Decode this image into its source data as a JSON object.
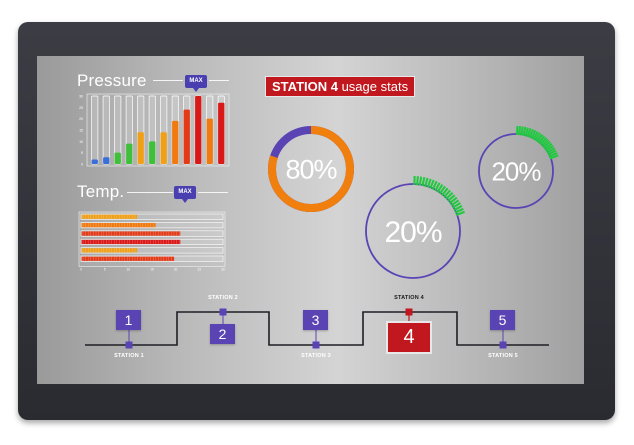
{
  "pressure": {
    "title": "Pressure",
    "max_label": "MAX",
    "y_ticks": [
      "30",
      "25",
      "20",
      "15",
      "10",
      "5",
      "0"
    ],
    "bars": [
      {
        "value": 2,
        "color": "#3a6fd8"
      },
      {
        "value": 3,
        "color": "#3a6fd8"
      },
      {
        "value": 5,
        "color": "#3fbf3a"
      },
      {
        "value": 9,
        "color": "#3fbf3a"
      },
      {
        "value": 14,
        "color": "#f0a018"
      },
      {
        "value": 10,
        "color": "#3fbf3a"
      },
      {
        "value": 14,
        "color": "#f0a018"
      },
      {
        "value": 19,
        "color": "#f07a10"
      },
      {
        "value": 24,
        "color": "#e33a18"
      },
      {
        "value": 30,
        "color": "#d91818"
      },
      {
        "value": 20,
        "color": "#f07a10"
      },
      {
        "value": 27,
        "color": "#d91818"
      }
    ],
    "max_value": 30
  },
  "temp": {
    "title": "Temp.",
    "max_label": "MAX",
    "x_ticks": [
      "0",
      "5",
      "10",
      "15",
      "20",
      "25",
      "30"
    ],
    "bars": [
      {
        "value": 9,
        "color": "#f0a018"
      },
      {
        "value": 12,
        "color": "#f07a10"
      },
      {
        "value": 16,
        "color": "#e33a18"
      },
      {
        "value": 16,
        "color": "#d91818"
      },
      {
        "value": 9,
        "color": "#f0a018"
      },
      {
        "value": 15,
        "color": "#e33a18"
      }
    ],
    "max_value": 23
  },
  "header": {
    "station": "STATION 4",
    "suffix": " usage stats"
  },
  "gauges": [
    {
      "label": "80%",
      "fraction": 0.8,
      "color": "#f07f0e"
    },
    {
      "label": "20%",
      "fraction": 0.2,
      "color": "#22c840"
    },
    {
      "label": "20%",
      "fraction": 0.2,
      "color": "#22c840"
    }
  ],
  "stations": [
    {
      "number": "1",
      "label": "STATION 1"
    },
    {
      "number": "2",
      "label": "STATION 2"
    },
    {
      "number": "3",
      "label": "STATION 3"
    },
    {
      "number": "4",
      "label": "STATION 4",
      "active": true
    },
    {
      "number": "5",
      "label": "STATION 5"
    }
  ]
}
